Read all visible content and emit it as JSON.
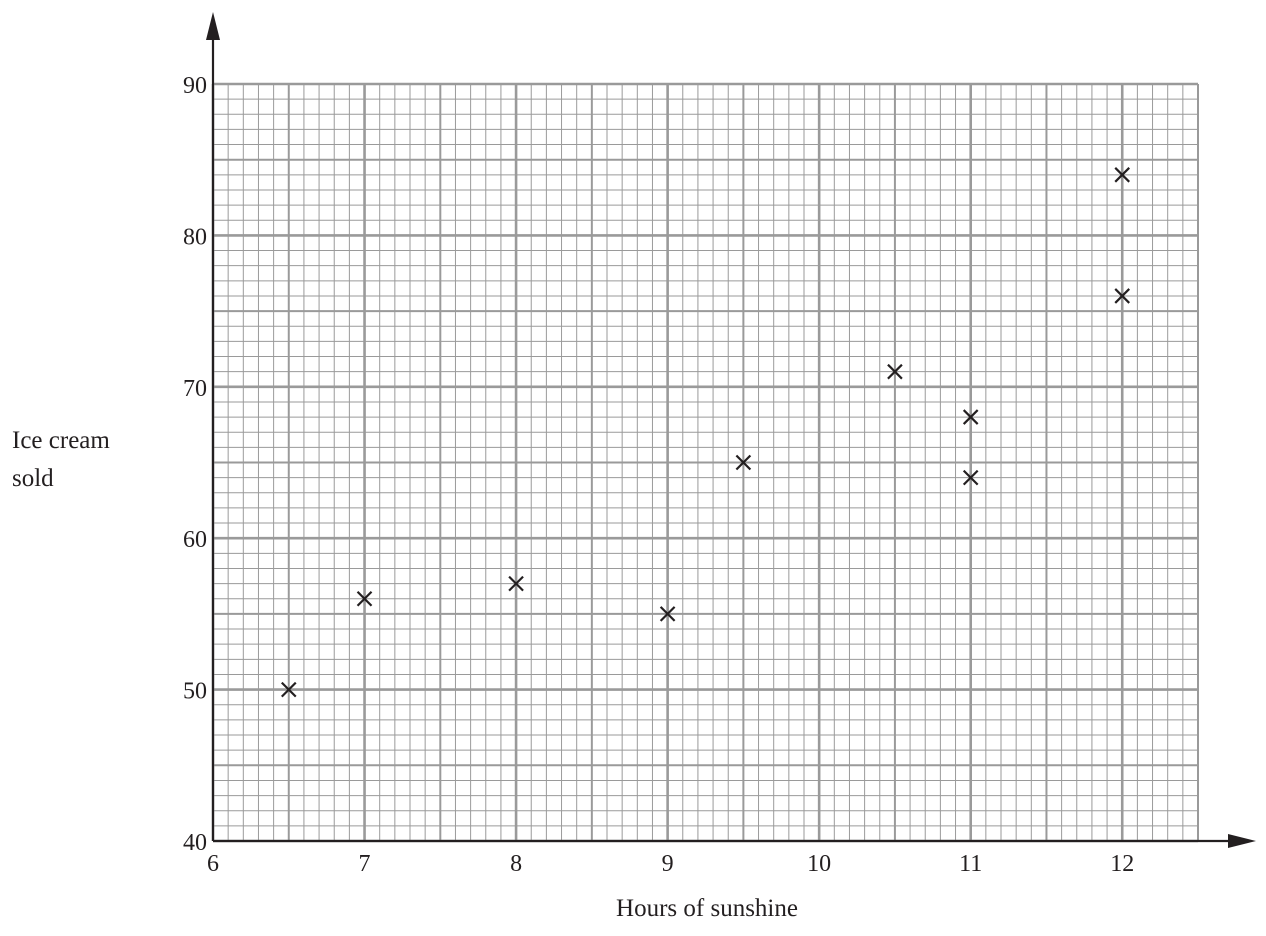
{
  "chart_data": {
    "type": "scatter",
    "title": "",
    "xlabel": "Hours of sunshine",
    "ylabel_lines": [
      "Ice cream",
      "sold"
    ],
    "xlim": [
      6,
      12.5
    ],
    "ylim": [
      40,
      90
    ],
    "x_ticks": [
      6,
      7,
      8,
      9,
      10,
      11,
      12
    ],
    "y_ticks": [
      40,
      50,
      60,
      70,
      80,
      90
    ],
    "grid": true,
    "marker": "x",
    "colors": {
      "ink": "#231f20",
      "grid": "#9a9a9a"
    },
    "points": [
      {
        "x": 6.5,
        "y": 50
      },
      {
        "x": 7,
        "y": 56
      },
      {
        "x": 8,
        "y": 57
      },
      {
        "x": 9,
        "y": 55
      },
      {
        "x": 9.5,
        "y": 65
      },
      {
        "x": 10.5,
        "y": 71
      },
      {
        "x": 11,
        "y": 68
      },
      {
        "x": 11,
        "y": 64
      },
      {
        "x": 12,
        "y": 84
      },
      {
        "x": 12,
        "y": 76
      }
    ]
  }
}
